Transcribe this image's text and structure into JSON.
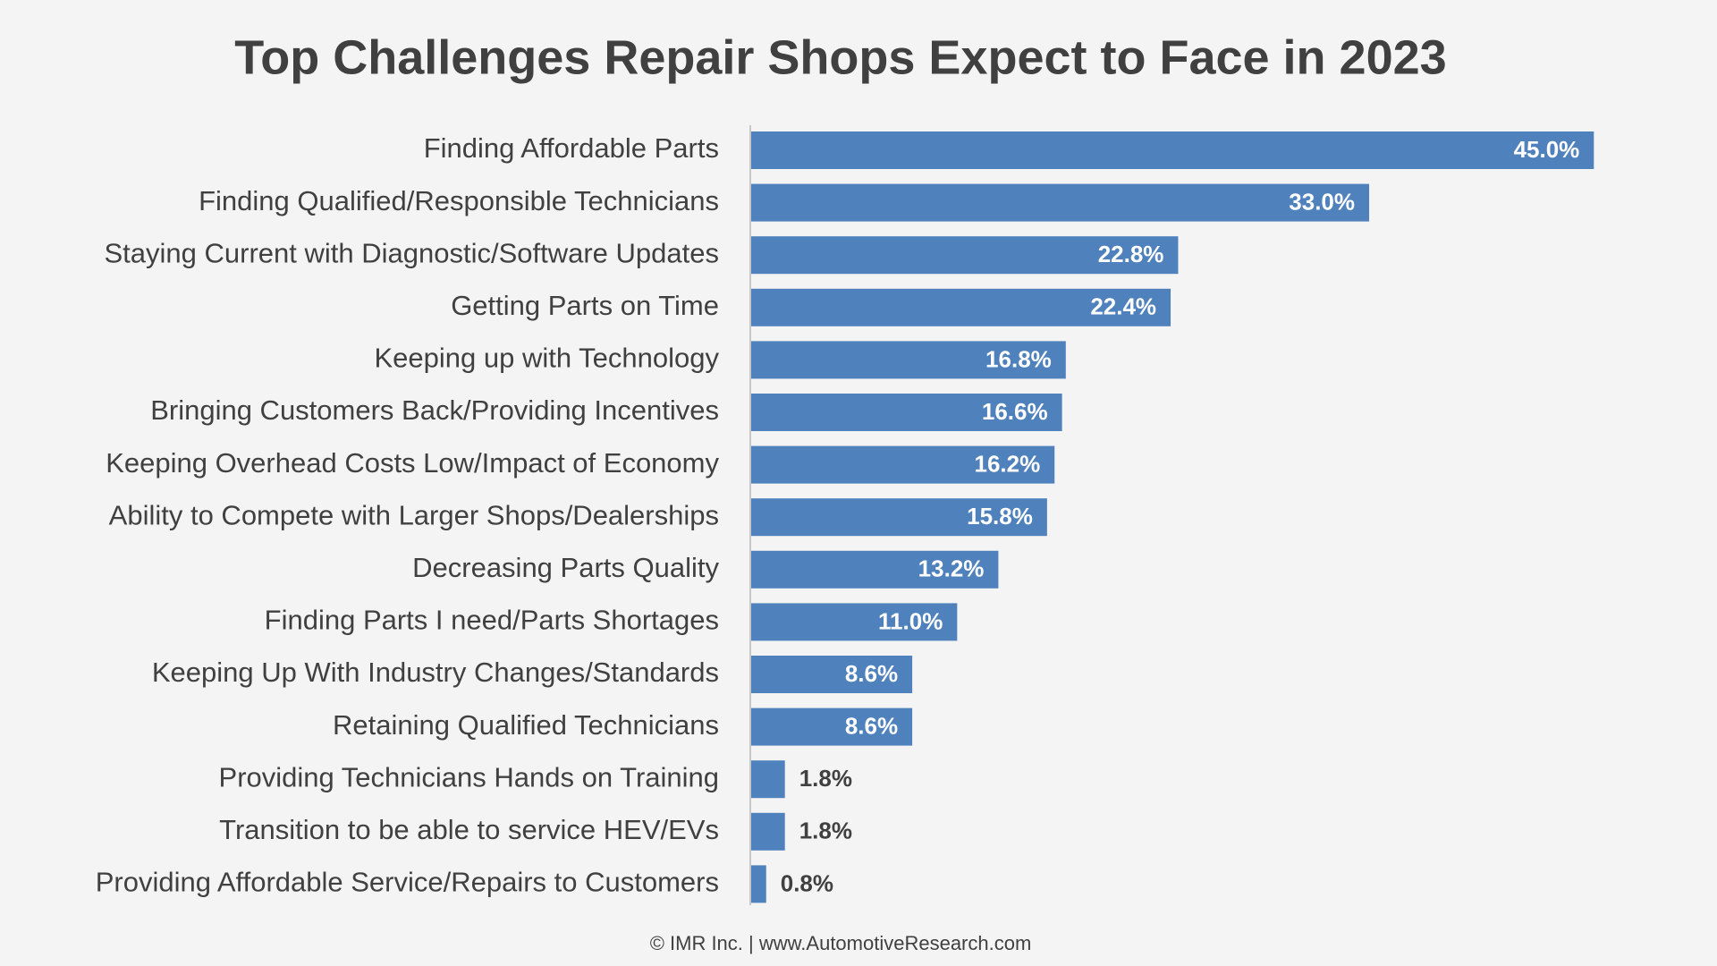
{
  "chart_data": {
    "type": "bar",
    "orientation": "horizontal",
    "title": "Top Challenges Repair Shops Expect to Face in 2023",
    "categories": [
      "Finding Affordable Parts",
      "Finding Qualified/Responsible Technicians",
      "Staying Current with Diagnostic/Software Updates",
      "Getting Parts on Time",
      "Keeping up with Technology",
      "Bringing Customers Back/Providing Incentives",
      "Keeping Overhead Costs Low/Impact of Economy",
      "Ability to Compete with Larger Shops/Dealerships",
      "Decreasing Parts Quality",
      "Finding Parts I need/Parts Shortages",
      "Keeping Up With Industry Changes/Standards",
      "Retaining Qualified Technicians",
      "Providing Technicians Hands on Training",
      "Transition to be able to service HEV/EVs",
      "Providing Affordable Service/Repairs to Customers"
    ],
    "values": [
      45,
      33,
      22.8,
      22.4,
      16.8,
      16.6,
      16.2,
      15.8,
      13.2,
      11,
      8.6,
      8.6,
      1.8,
      1.8,
      0.8
    ],
    "value_labels": [
      "45.0%",
      "33.0%",
      "22.8%",
      "22.4%",
      "16.8%",
      "16.6%",
      "16.2%",
      "15.8%",
      "13.2%",
      "11.0%",
      "8.6%",
      "8.6%",
      "1.8%",
      "1.8%",
      "0.8%"
    ],
    "color": "#4f81bd",
    "xlim": [
      0,
      50
    ],
    "source": "© IMR Inc. | www.AutomotiveResearch.com"
  }
}
